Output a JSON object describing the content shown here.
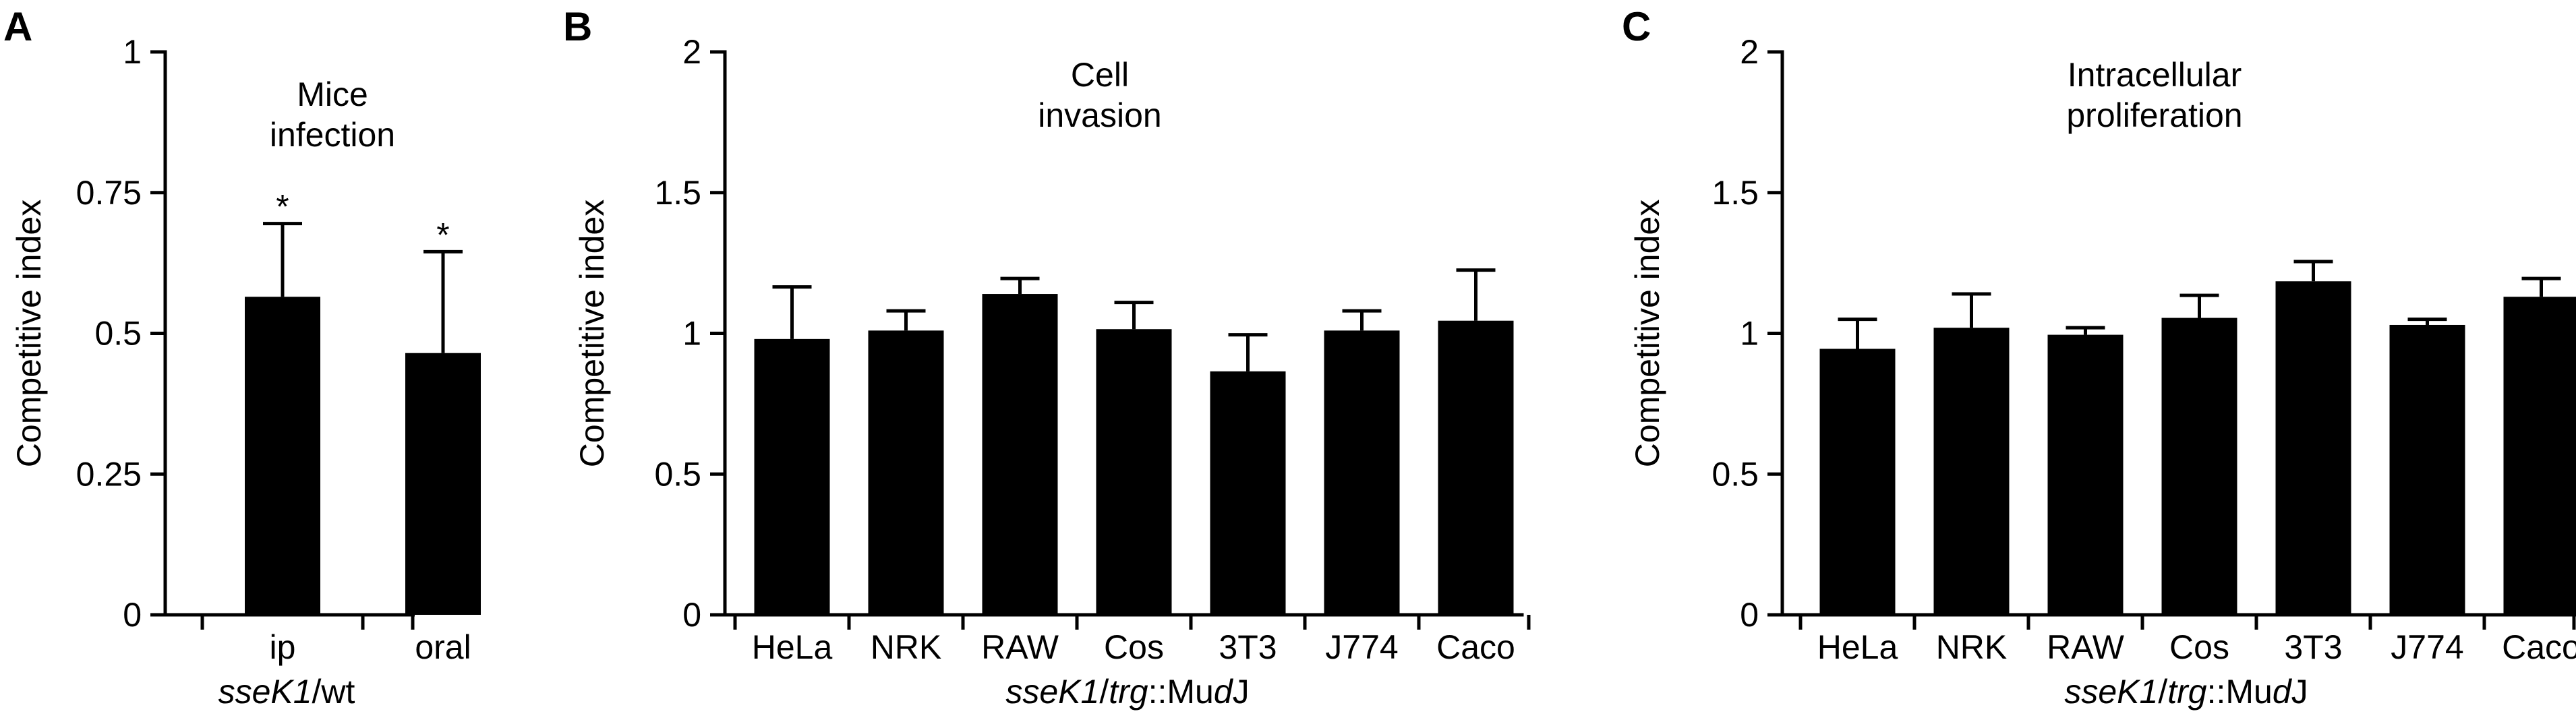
{
  "chart_data": [
    {
      "panel": "A",
      "type": "bar",
      "title_lines": [
        "Mice",
        "infection"
      ],
      "ylabel": "Competitive index",
      "xlabel_parts": [
        {
          "text": "sseK1",
          "italic": true
        },
        {
          "text": "/wt",
          "italic": false
        }
      ],
      "ylim": [
        0,
        1
      ],
      "yticks": [
        0,
        0.25,
        0.5,
        0.75,
        1
      ],
      "ytick_labels": [
        "0",
        "0.25",
        "0.5",
        "0.75",
        "1"
      ],
      "categories": [
        "ip",
        "oral"
      ],
      "values": [
        0.565,
        0.465
      ],
      "error_upper": [
        0.13,
        0.18
      ],
      "significance": [
        "*",
        "*"
      ],
      "bar_color": "#000000",
      "grid": false,
      "legend": "none"
    },
    {
      "panel": "B",
      "type": "bar",
      "title_lines": [
        "Cell",
        "invasion"
      ],
      "ylabel": "Competitive index",
      "xlabel_parts": [
        {
          "text": "sseK1",
          "italic": true
        },
        {
          "text": "/",
          "italic": false
        },
        {
          "text": "trg",
          "italic": true
        },
        {
          "text": "::Mu",
          "italic": false
        },
        {
          "text": "d",
          "italic": true
        },
        {
          "text": "J",
          "italic": false
        }
      ],
      "ylim": [
        0,
        2
      ],
      "yticks": [
        0,
        0.5,
        1,
        1.5,
        2
      ],
      "ytick_labels": [
        "0",
        "0.5",
        "1",
        "1.5",
        "2"
      ],
      "categories": [
        "HeLa",
        "NRK",
        "RAW",
        "Cos",
        "3T3",
        "J774",
        "Caco"
      ],
      "values": [
        0.98,
        1.01,
        1.14,
        1.015,
        0.865,
        1.01,
        1.045
      ],
      "error_upper": [
        0.185,
        0.07,
        0.055,
        0.095,
        0.13,
        0.07,
        0.18
      ],
      "significance": [
        "",
        "",
        "",
        "",
        "",
        "",
        ""
      ],
      "bar_color": "#000000",
      "grid": false,
      "legend": "none"
    },
    {
      "panel": "C",
      "type": "bar",
      "title_lines": [
        "Intracellular",
        "proliferation"
      ],
      "ylabel": "Competitive index",
      "xlabel_parts": [
        {
          "text": "sseK1",
          "italic": true
        },
        {
          "text": "/",
          "italic": false
        },
        {
          "text": "trg",
          "italic": true
        },
        {
          "text": "::Mu",
          "italic": false
        },
        {
          "text": "d",
          "italic": true
        },
        {
          "text": "J",
          "italic": false
        }
      ],
      "ylim": [
        0,
        2
      ],
      "yticks": [
        0,
        0.5,
        1,
        1.5,
        2
      ],
      "ytick_labels": [
        "0",
        "0.5",
        "1",
        "1.5",
        "2"
      ],
      "categories": [
        "HeLa",
        "NRK",
        "RAW",
        "Cos",
        "3T3",
        "J774",
        "Caco"
      ],
      "values": [
        0.945,
        1.02,
        0.995,
        1.055,
        1.185,
        1.03,
        1.13
      ],
      "error_upper": [
        0.105,
        0.12,
        0.025,
        0.08,
        0.07,
        0.02,
        0.065
      ],
      "significance": [
        "",
        "",
        "",
        "",
        "",
        "",
        ""
      ],
      "bar_color": "#000000",
      "grid": false,
      "legend": "none"
    }
  ]
}
